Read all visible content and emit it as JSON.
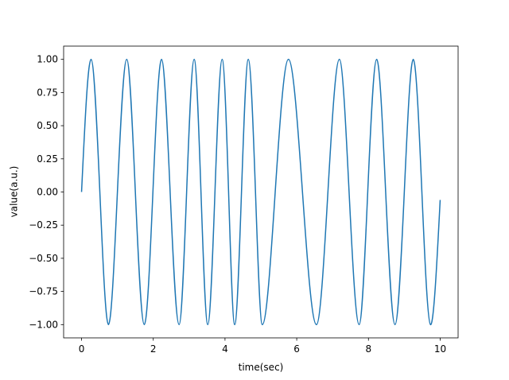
{
  "chart_data": {
    "type": "line",
    "xlabel": "time(sec)",
    "ylabel": "value(a.u.)",
    "x": [
      0,
      0.265,
      0.51,
      0.75,
      1.0,
      1.26,
      1.5,
      1.75,
      1.99,
      2.23,
      2.47,
      2.72,
      2.93,
      3.14,
      3.33,
      3.52,
      3.72,
      3.92,
      4.1,
      4.27,
      4.46,
      4.65,
      4.85,
      5.04,
      5.4,
      5.77,
      6.16,
      6.55,
      6.87,
      7.19,
      7.46,
      7.74,
      7.98,
      8.23,
      8.48,
      8.74,
      9.0,
      9.25,
      9.49,
      9.73,
      10.0
    ],
    "series": [
      {
        "color": "#1f77b4",
        "values": [
          0,
          1,
          0,
          -1,
          0,
          1,
          0,
          -1,
          0,
          1,
          0,
          -1,
          0,
          1,
          0,
          -1,
          0,
          1,
          0,
          -1,
          0,
          1,
          0,
          -1,
          0,
          1,
          0,
          -1,
          0,
          1,
          0,
          -1,
          0,
          1,
          0,
          -1,
          0,
          1,
          0,
          -1,
          -0.06
        ]
      }
    ],
    "xlim": [
      -0.5,
      10.5
    ],
    "ylim": [
      -1.1,
      1.1
    ],
    "xticks": [
      0,
      2,
      4,
      6,
      8,
      10
    ],
    "yticks": [
      {
        "value": -1,
        "label": "−1.00"
      },
      {
        "value": -0.75,
        "label": "−0.75"
      },
      {
        "value": -0.5,
        "label": "−0.50"
      },
      {
        "value": -0.25,
        "label": "−0.25"
      },
      {
        "value": 0,
        "label": "0.00"
      },
      {
        "value": 0.25,
        "label": "0.25"
      },
      {
        "value": 0.5,
        "label": "0.50"
      },
      {
        "value": 0.75,
        "label": "0.75"
      },
      {
        "value": 1,
        "label": "1.00"
      }
    ],
    "grid": false
  }
}
